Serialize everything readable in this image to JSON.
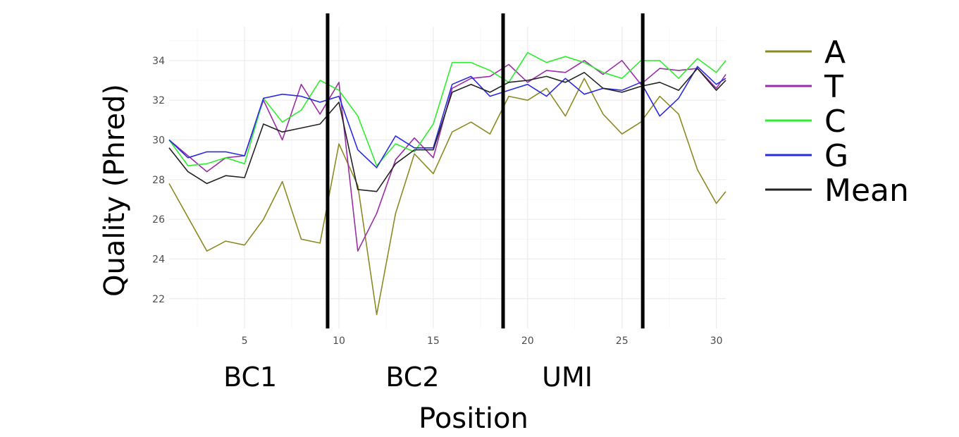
{
  "chart_data": {
    "type": "line",
    "xlabel": "Position",
    "ylabel": "Quality (Phred)",
    "xlim": [
      1,
      30.5
    ],
    "ylim": [
      20.5,
      35.7
    ],
    "x_ticks": [
      5,
      10,
      15,
      20,
      25,
      30
    ],
    "y_ticks": [
      22,
      24,
      26,
      28,
      30,
      32,
      34
    ],
    "grid": true,
    "legend_position": "right",
    "x": [
      1,
      2,
      3,
      4,
      5,
      6,
      7,
      8,
      9,
      10,
      11,
      12,
      13,
      14,
      15,
      16,
      17,
      18,
      19,
      20,
      21,
      22,
      23,
      24,
      25,
      26,
      27,
      28,
      29,
      30,
      30.5
    ],
    "series": [
      {
        "name": "A",
        "color": "#8c8a22",
        "values": [
          27.8,
          26.1,
          24.4,
          24.9,
          24.7,
          26.0,
          27.9,
          25.0,
          24.8,
          29.8,
          27.7,
          21.2,
          26.3,
          29.3,
          28.3,
          30.4,
          30.9,
          30.3,
          32.2,
          32.0,
          32.6,
          31.2,
          33.1,
          31.3,
          30.3,
          30.9,
          32.2,
          31.3,
          28.5,
          26.8,
          27.4
        ]
      },
      {
        "name": "T",
        "color": "#9a2ea6",
        "values": [
          30.0,
          29.2,
          28.4,
          29.1,
          29.2,
          32.0,
          30.0,
          32.8,
          31.3,
          32.9,
          24.4,
          26.3,
          29.0,
          30.1,
          29.1,
          32.6,
          33.1,
          33.2,
          33.8,
          32.9,
          33.5,
          33.4,
          34.0,
          33.3,
          34.0,
          32.8,
          33.6,
          33.5,
          33.6,
          32.6,
          33.3
        ]
      },
      {
        "name": "C",
        "color": "#2eee2e",
        "values": [
          30.0,
          28.7,
          28.8,
          29.1,
          28.8,
          32.1,
          30.9,
          31.5,
          33.0,
          32.5,
          31.2,
          28.7,
          29.8,
          29.4,
          30.8,
          33.9,
          33.9,
          33.5,
          32.9,
          34.4,
          33.9,
          34.2,
          33.9,
          33.4,
          33.1,
          34.0,
          34.0,
          33.1,
          34.1,
          33.4,
          34.0
        ]
      },
      {
        "name": "G",
        "color": "#2a2ae2",
        "values": [
          30.0,
          29.1,
          29.4,
          29.4,
          29.2,
          32.1,
          32.3,
          32.2,
          31.9,
          32.2,
          29.5,
          28.6,
          30.2,
          29.6,
          29.6,
          32.8,
          33.2,
          32.2,
          32.5,
          32.8,
          32.2,
          33.1,
          32.3,
          32.6,
          32.5,
          32.9,
          31.2,
          32.1,
          33.7,
          32.8,
          33.1
        ]
      },
      {
        "name": "Mean",
        "color": "#222222",
        "values": [
          29.6,
          28.4,
          27.8,
          28.2,
          28.1,
          30.8,
          30.4,
          30.6,
          30.8,
          31.9,
          27.5,
          27.4,
          28.8,
          29.5,
          29.5,
          32.4,
          32.8,
          32.4,
          32.9,
          33.0,
          33.2,
          32.9,
          33.4,
          32.6,
          32.4,
          32.7,
          32.9,
          32.5,
          33.6,
          32.5,
          33.0
        ]
      }
    ],
    "vlines": [
      9.4,
      18.7,
      26.1
    ],
    "regions": [
      {
        "label": "BC1",
        "center": 5.3
      },
      {
        "label": "BC2",
        "center": 13.9
      },
      {
        "label": "UMI",
        "center": 22.1
      }
    ]
  }
}
